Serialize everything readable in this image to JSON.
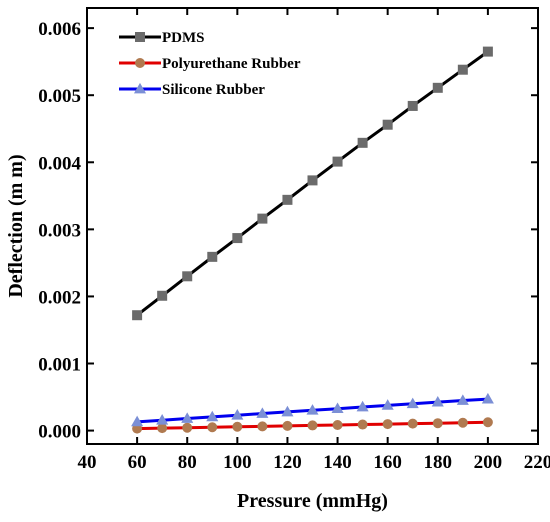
{
  "chart_data": {
    "type": "line",
    "title": "",
    "xlabel": "Pressure (mmHg)",
    "ylabel": "Deflection (m m)",
    "xlim": [
      40,
      220
    ],
    "ylim": [
      -0.0002,
      0.0063
    ],
    "xticks": [
      40,
      60,
      80,
      100,
      120,
      140,
      160,
      180,
      200,
      220
    ],
    "xtick_labels": [
      "40",
      "60",
      "80",
      "100",
      "120",
      "140",
      "160",
      "180",
      "200",
      "220"
    ],
    "yticks": [
      0,
      0.001,
      0.002,
      0.003,
      0.004,
      0.005,
      0.006
    ],
    "ytick_labels": [
      "0.000",
      "0.001",
      "0.002",
      "0.003",
      "0.004",
      "0.005",
      "0.006"
    ],
    "grid": false,
    "legend_position": "top-left",
    "x": [
      60,
      70,
      80,
      90,
      100,
      110,
      120,
      130,
      140,
      150,
      160,
      170,
      180,
      190,
      200
    ],
    "series": [
      {
        "name": "PDMS",
        "line_color": "#000000",
        "marker": "square",
        "marker_color": "#6b6b6b",
        "values": [
          0.00172,
          0.00201,
          0.0023,
          0.00259,
          0.00287,
          0.00316,
          0.00344,
          0.00373,
          0.00401,
          0.00429,
          0.00456,
          0.00484,
          0.00511,
          0.00538,
          0.00565
        ]
      },
      {
        "name": "Polyurethane Rubber",
        "line_color": "#e00000",
        "marker": "circle",
        "marker_color": "#b07a50",
        "values": [
          3e-05,
          3.7e-05,
          4.3e-05,
          5e-05,
          5.7e-05,
          6.3e-05,
          7e-05,
          7.7e-05,
          8.3e-05,
          9e-05,
          9.7e-05,
          0.000104,
          0.00011,
          0.000117,
          0.000124
        ]
      },
      {
        "name": "Silicone Rubber",
        "line_color": "#0000ee",
        "marker": "triangle",
        "marker_color": "#7b8fd6",
        "values": [
          0.00013,
          0.000155,
          0.00018,
          0.000204,
          0.000229,
          0.000254,
          0.000278,
          0.000303,
          0.000327,
          0.000352,
          0.000376,
          0.0004,
          0.000424,
          0.000448,
          0.00047
        ]
      }
    ]
  }
}
